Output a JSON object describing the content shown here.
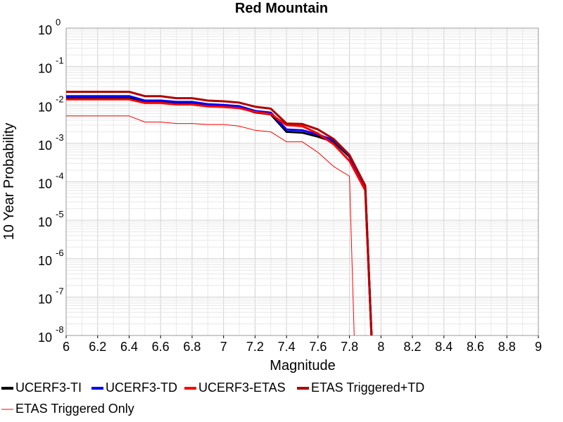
{
  "chart_data": {
    "type": "line",
    "title": "Red Mountain",
    "xlabel": "Magnitude",
    "ylabel": "10 Year Probability",
    "xlim": [
      6,
      9
    ],
    "ylim": [
      1e-08,
      1
    ],
    "yscale": "log",
    "grid": true,
    "legend_position": "bottom",
    "x_ticks": [
      "6",
      "6.2",
      "6.4",
      "6.6",
      "6.8",
      "7",
      "7.2",
      "7.4",
      "7.6",
      "7.8",
      "8",
      "8.2",
      "8.4",
      "8.6",
      "8.8",
      "9"
    ],
    "y_ticks": [
      {
        "base": "10",
        "exp": "0",
        "value": 1
      },
      {
        "base": "10",
        "exp": "-1",
        "value": 0.1
      },
      {
        "base": "10",
        "exp": "-2",
        "value": 0.01
      },
      {
        "base": "10",
        "exp": "-3",
        "value": 0.001
      },
      {
        "base": "10",
        "exp": "-4",
        "value": 0.0001
      },
      {
        "base": "10",
        "exp": "-5",
        "value": 1e-05
      },
      {
        "base": "10",
        "exp": "-6",
        "value": 1e-06
      },
      {
        "base": "10",
        "exp": "-7",
        "value": 1e-07
      },
      {
        "base": "10",
        "exp": "-8",
        "value": 1e-08
      }
    ],
    "series": [
      {
        "name": "UCERF3-TI",
        "color": "#000000",
        "width": 3,
        "x": [
          6.0,
          6.4,
          6.5,
          6.6,
          6.7,
          6.8,
          6.9,
          7.0,
          7.1,
          7.2,
          7.3,
          7.4,
          7.5,
          7.6,
          7.7,
          7.8,
          7.9,
          7.94
        ],
        "y": [
          0.015,
          0.015,
          0.012,
          0.012,
          0.011,
          0.011,
          0.0097,
          0.0093,
          0.0087,
          0.0064,
          0.0057,
          0.002,
          0.0019,
          0.0015,
          0.0011,
          0.00045,
          7e-05,
          1e-08
        ]
      },
      {
        "name": "UCERF3-TD",
        "color": "#0000ff",
        "width": 3,
        "x": [
          6.0,
          6.4,
          6.5,
          6.6,
          6.7,
          6.8,
          6.9,
          7.0,
          7.1,
          7.2,
          7.3,
          7.4,
          7.5,
          7.6,
          7.7,
          7.8,
          7.9,
          7.94
        ],
        "y": [
          0.017,
          0.017,
          0.013,
          0.013,
          0.012,
          0.012,
          0.0105,
          0.01,
          0.0093,
          0.007,
          0.0063,
          0.0023,
          0.0022,
          0.0017,
          0.0012,
          0.00048,
          7e-05,
          1e-08
        ]
      },
      {
        "name": "UCERF3-ETAS",
        "color": "#ff0000",
        "width": 3,
        "x": [
          6.0,
          6.4,
          6.5,
          6.6,
          6.7,
          6.8,
          6.9,
          7.0,
          7.1,
          7.2,
          7.3,
          7.4,
          7.5,
          7.6,
          7.7,
          7.8,
          7.9,
          7.94
        ],
        "y": [
          0.014,
          0.014,
          0.0113,
          0.0113,
          0.0103,
          0.0103,
          0.0092,
          0.0089,
          0.0083,
          0.0066,
          0.0058,
          0.003,
          0.0028,
          0.0018,
          0.00095,
          0.00035,
          6e-05,
          1e-08
        ]
      },
      {
        "name": "ETAS Triggered+TD",
        "color": "#b00000",
        "width": 3,
        "x": [
          6.0,
          6.4,
          6.5,
          6.6,
          6.7,
          6.8,
          6.9,
          7.0,
          7.1,
          7.2,
          7.3,
          7.4,
          7.5,
          7.6,
          7.7,
          7.8,
          7.9,
          7.94
        ],
        "y": [
          0.022,
          0.022,
          0.017,
          0.017,
          0.015,
          0.015,
          0.013,
          0.0125,
          0.0115,
          0.009,
          0.008,
          0.0033,
          0.0032,
          0.0023,
          0.0013,
          0.0005,
          8e-05,
          1e-08
        ]
      },
      {
        "name": "ETAS Triggered Only",
        "color": "#ff0000",
        "width": 1,
        "x": [
          6.0,
          6.4,
          6.5,
          6.6,
          6.7,
          6.8,
          6.9,
          7.0,
          7.1,
          7.2,
          7.3,
          7.4,
          7.5,
          7.6,
          7.7,
          7.8,
          7.83
        ],
        "y": [
          0.0052,
          0.0052,
          0.0036,
          0.0036,
          0.0033,
          0.0033,
          0.0031,
          0.0031,
          0.0028,
          0.0022,
          0.002,
          0.0011,
          0.0011,
          0.00058,
          0.00025,
          0.00014,
          1e-08
        ]
      }
    ]
  }
}
